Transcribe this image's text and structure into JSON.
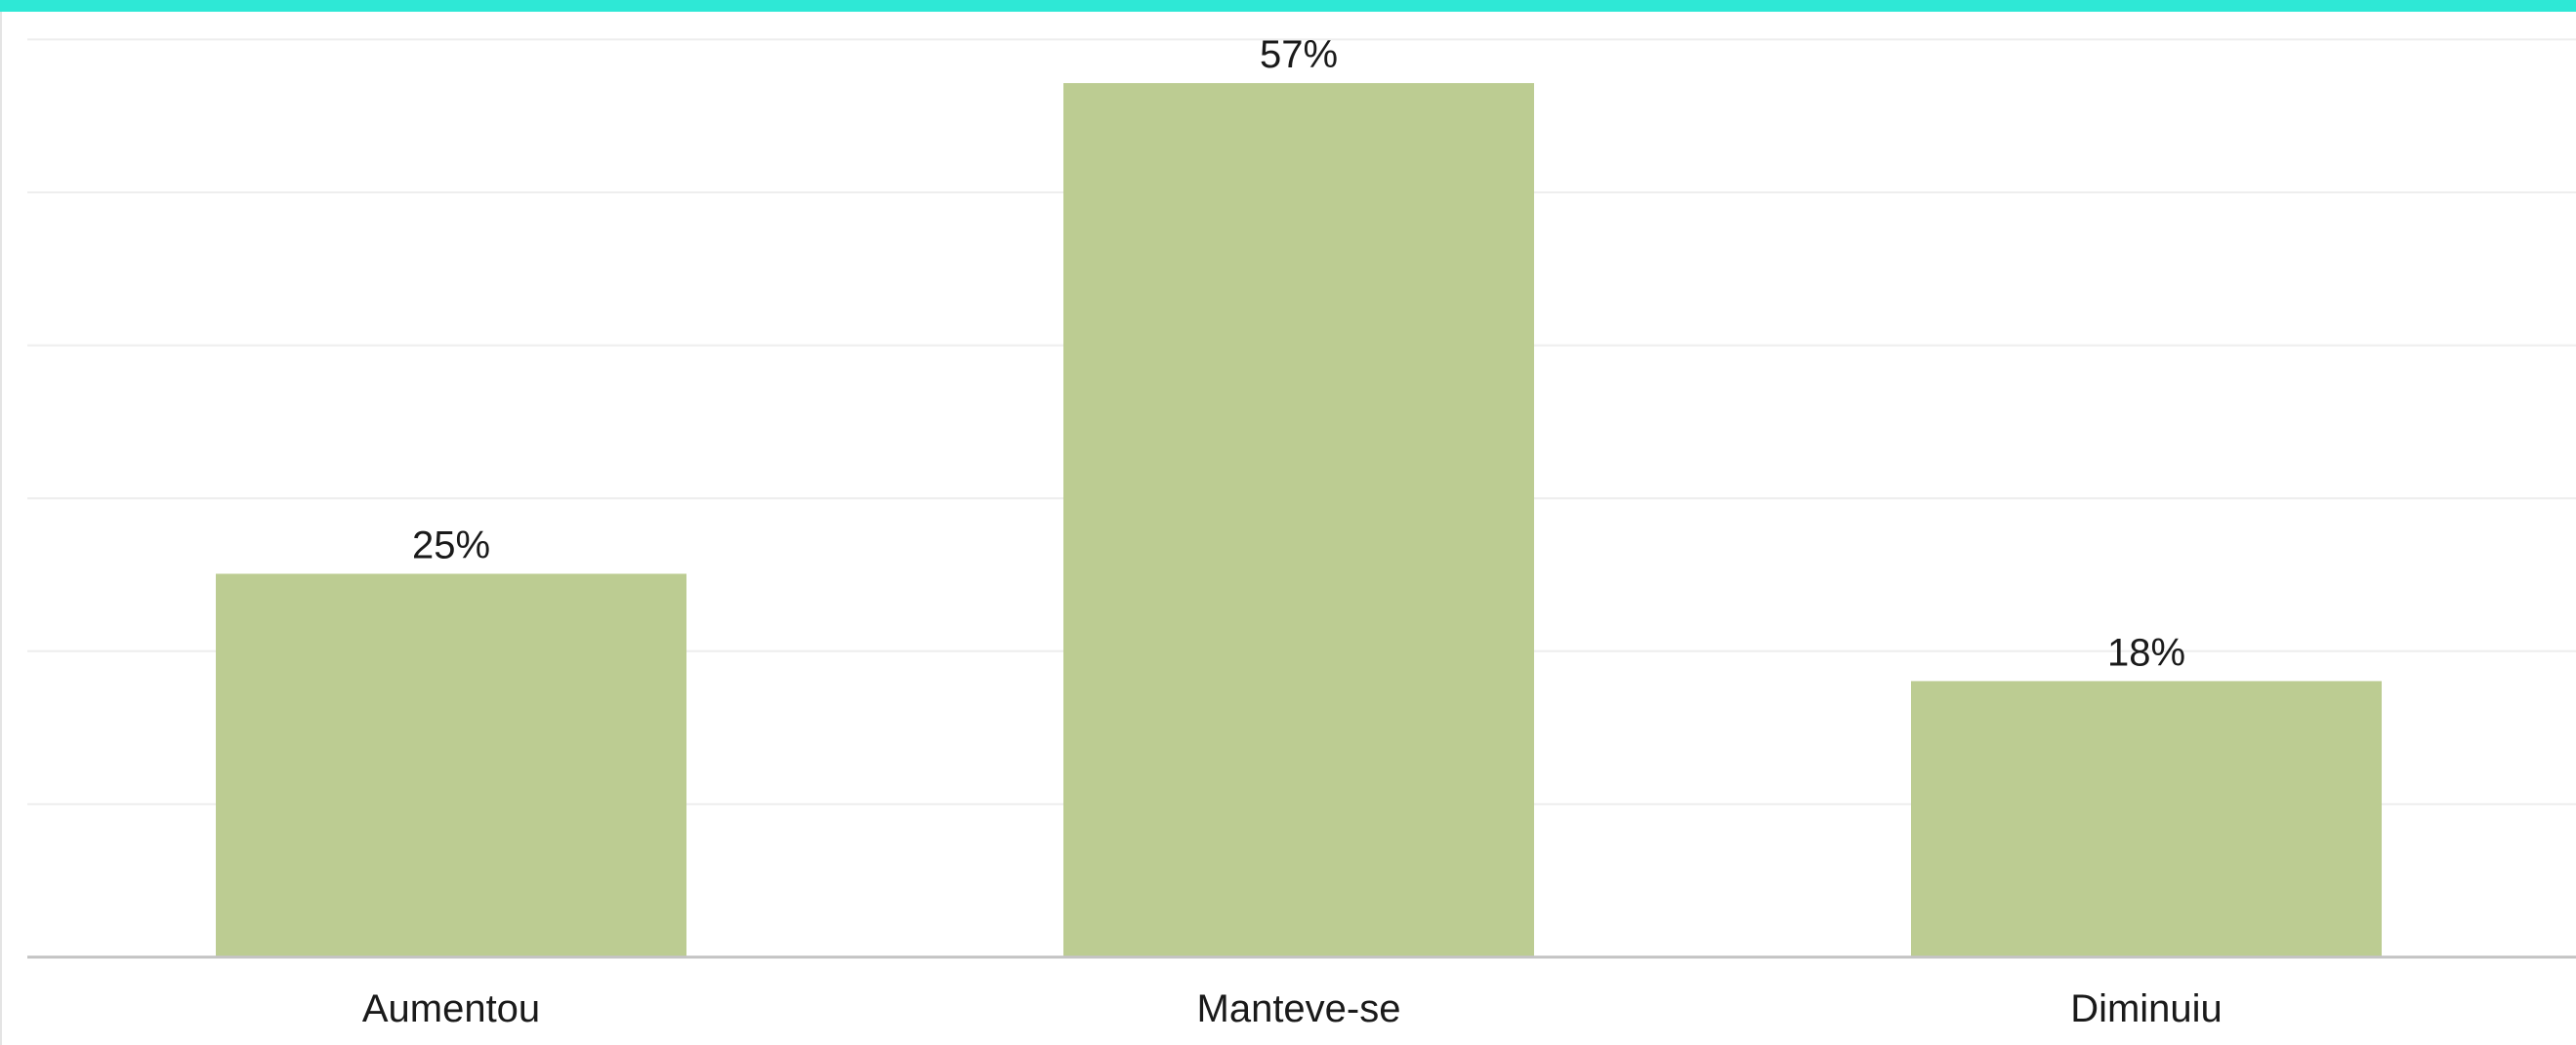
{
  "colors": {
    "accent_strip": "#2ee8d6",
    "bar_fill": "#bccc92"
  },
  "chart_data": {
    "type": "bar",
    "categories": [
      "Aumentou",
      "Manteve-se",
      "Diminuiu"
    ],
    "values": [
      25,
      57,
      18
    ],
    "value_labels": [
      "25%",
      "57%",
      "18%"
    ],
    "unit": "%",
    "ylim": [
      0,
      60
    ],
    "grid": true,
    "legend": "none"
  }
}
